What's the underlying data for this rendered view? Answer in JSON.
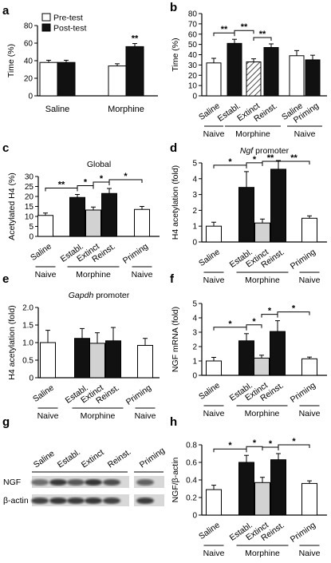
{
  "chart_data": [
    {
      "panel": "a",
      "type": "bar",
      "ylabel": "Time (%)",
      "ylim": [
        0,
        80
      ],
      "yticks": [
        0,
        20,
        40,
        60,
        80
      ],
      "categories": [
        "Saline",
        "Morphine"
      ],
      "series": [
        {
          "name": "Pre-test",
          "color": "#ffffff",
          "values": [
            38,
            34
          ],
          "errors": [
            2.5,
            2.5
          ]
        },
        {
          "name": "Post-test",
          "color": "#111111",
          "values": [
            38,
            56
          ],
          "errors": [
            2.5,
            3.5
          ]
        }
      ],
      "legend": "top-left",
      "annotations": [
        {
          "text": "**",
          "category": "Morphine",
          "series": "Post-test"
        }
      ]
    },
    {
      "panel": "b",
      "type": "bar",
      "ylabel": "Time (%)",
      "ylim": [
        0,
        80
      ],
      "yticks": [
        0,
        10,
        20,
        30,
        40,
        50,
        60,
        70,
        80
      ],
      "categories": [
        "Saline",
        "Establ.",
        "Extinct",
        "Reinst.",
        "Saline",
        "Priming"
      ],
      "values": [
        32,
        51,
        33,
        47,
        39,
        35
      ],
      "errors": [
        4.5,
        4,
        3,
        3.5,
        5,
        4.5
      ],
      "fills": [
        "white",
        "black",
        "hatch",
        "black",
        "white",
        "black"
      ],
      "groups": [
        {
          "label": "Naive",
          "categories": [
            "Saline"
          ]
        },
        {
          "label": "Morphine",
          "categories": [
            "Establ.",
            "Extinct",
            "Reinst."
          ]
        },
        {
          "label": "Naive",
          "categories": [
            "Saline",
            "Priming"
          ]
        }
      ],
      "significance": [
        {
          "text": "**",
          "between": [
            "Saline",
            "Establ."
          ]
        },
        {
          "text": "**",
          "between": [
            "Establ.",
            "Extinct"
          ]
        },
        {
          "text": "**",
          "between": [
            "Extinct",
            "Reinst."
          ]
        }
      ]
    },
    {
      "panel": "c",
      "type": "bar",
      "title": "Global",
      "ylabel": "Acetylated H4 (%)",
      "ylim": [
        0,
        30
      ],
      "yticks": [
        0,
        5,
        10,
        15,
        20,
        25,
        30
      ],
      "categories": [
        "Saline",
        "Establ.",
        "Extinct",
        "Reinst.",
        "Priming"
      ],
      "values": [
        10.5,
        19.5,
        13.2,
        21.5,
        13.5
      ],
      "errors": [
        1.2,
        1.5,
        1.5,
        2.5,
        1.5
      ],
      "fills": [
        "white",
        "black",
        "grey",
        "black",
        "white"
      ],
      "groups": [
        {
          "label": "Naive",
          "categories": [
            "Saline"
          ]
        },
        {
          "label": "Morphine",
          "categories": [
            "Establ.",
            "Extinct",
            "Reinst."
          ]
        },
        {
          "label": "Naive",
          "categories": [
            "Priming"
          ]
        }
      ],
      "significance": [
        {
          "text": "**",
          "between": [
            "Saline",
            "Establ."
          ]
        },
        {
          "text": "*",
          "between": [
            "Establ.",
            "Extinct"
          ]
        },
        {
          "text": "*",
          "between": [
            "Extinct",
            "Reinst."
          ]
        },
        {
          "text": "*",
          "between": [
            "Reinst.",
            "Priming"
          ]
        }
      ]
    },
    {
      "panel": "d",
      "type": "bar",
      "title": "Ngf promoter",
      "ylabel": "H4 acetylation (fold)",
      "ylim": [
        0,
        5
      ],
      "yticks": [
        0,
        1,
        2,
        3,
        4,
        5
      ],
      "categories": [
        "Saline",
        "Establ.",
        "Extinct",
        "Reinst.",
        "Priming"
      ],
      "values": [
        1.0,
        3.45,
        1.2,
        4.6,
        1.5
      ],
      "errors": [
        0.25,
        1.0,
        0.25,
        0.55,
        0.15
      ],
      "fills": [
        "white",
        "black",
        "grey",
        "black",
        "white"
      ],
      "groups": [
        {
          "label": "Naive",
          "categories": [
            "Saline"
          ]
        },
        {
          "label": "Morphine",
          "categories": [
            "Establ.",
            "Extinct",
            "Reinst."
          ]
        },
        {
          "label": "Naive",
          "categories": [
            "Priming"
          ]
        }
      ],
      "significance": [
        {
          "text": "*",
          "between": [
            "Saline",
            "Establ."
          ]
        },
        {
          "text": "*",
          "between": [
            "Establ.",
            "Extinct"
          ]
        },
        {
          "text": "**",
          "between": [
            "Extinct",
            "Reinst."
          ]
        },
        {
          "text": "**",
          "between": [
            "Reinst.",
            "Priming"
          ]
        }
      ]
    },
    {
      "panel": "e",
      "type": "bar",
      "title": "Gapdh promoter",
      "ylabel": "H4 acetylation (fold)",
      "ylim": [
        0,
        2.0
      ],
      "yticks": [
        0,
        0.5,
        1.0,
        1.5,
        2.0
      ],
      "categories": [
        "Saline",
        "Establ.",
        "Extinct",
        "Reinst.",
        "Priming"
      ],
      "values": [
        1.0,
        1.12,
        0.98,
        1.05,
        0.92
      ],
      "errors": [
        0.35,
        0.28,
        0.3,
        0.38,
        0.2
      ],
      "fills": [
        "white",
        "black",
        "grey",
        "black",
        "white"
      ],
      "groups": [
        {
          "label": "Naive",
          "categories": [
            "Saline"
          ]
        },
        {
          "label": "Morphine",
          "categories": [
            "Establ.",
            "Extinct",
            "Reinst."
          ]
        },
        {
          "label": "Naive",
          "categories": [
            "Priming"
          ]
        }
      ]
    },
    {
      "panel": "f",
      "type": "bar",
      "ylabel": "NGF mRNA (fold)",
      "ylim": [
        0,
        5
      ],
      "yticks": [
        0,
        1,
        2,
        3,
        4,
        5
      ],
      "categories": [
        "Saline",
        "Establ.",
        "Extinct",
        "Reinst.",
        "Priming"
      ],
      "values": [
        1.0,
        2.4,
        1.2,
        3.05,
        1.15
      ],
      "errors": [
        0.25,
        0.5,
        0.2,
        0.75,
        0.12
      ],
      "fills": [
        "white",
        "black",
        "grey",
        "black",
        "white"
      ],
      "groups": [
        {
          "label": "Naive",
          "categories": [
            "Saline"
          ]
        },
        {
          "label": "Morphine",
          "categories": [
            "Establ.",
            "Extinct",
            "Reinst."
          ]
        },
        {
          "label": "Naive",
          "categories": [
            "Priming"
          ]
        }
      ],
      "significance": [
        {
          "text": "*",
          "between": [
            "Saline",
            "Establ."
          ]
        },
        {
          "text": "*",
          "between": [
            "Establ.",
            "Extinct"
          ]
        },
        {
          "text": "*",
          "between": [
            "Extinct",
            "Reinst."
          ]
        },
        {
          "text": "*",
          "between": [
            "Reinst.",
            "Priming"
          ]
        }
      ]
    },
    {
      "panel": "h",
      "type": "bar",
      "ylabel": "NGF/β-actin",
      "ylim": [
        0,
        0.8
      ],
      "yticks": [
        0,
        0.2,
        0.4,
        0.6,
        0.8
      ],
      "categories": [
        "Saline",
        "Establ.",
        "Extinct",
        "Reinst.",
        "Priming"
      ],
      "values": [
        0.29,
        0.6,
        0.37,
        0.63,
        0.36
      ],
      "errors": [
        0.05,
        0.08,
        0.06,
        0.07,
        0.03
      ],
      "fills": [
        "white",
        "black",
        "grey",
        "black",
        "white"
      ],
      "groups": [
        {
          "label": "Naive",
          "categories": [
            "Saline"
          ]
        },
        {
          "label": "Morphine",
          "categories": [
            "Establ.",
            "Extinct",
            "Reinst."
          ]
        },
        {
          "label": "Naive",
          "categories": [
            "Priming"
          ]
        }
      ],
      "significance": [
        {
          "text": "*",
          "between": [
            "Saline",
            "Establ."
          ]
        },
        {
          "text": "*",
          "between": [
            "Establ.",
            "Extinct"
          ]
        },
        {
          "text": "*",
          "between": [
            "Extinct",
            "Reinst."
          ]
        },
        {
          "text": "*",
          "between": [
            "Reinst.",
            "Priming"
          ]
        }
      ]
    }
  ],
  "panel_letters": {
    "a": "a",
    "b": "b",
    "c": "c",
    "d": "d",
    "e": "e",
    "f": "f",
    "g": "g",
    "h": "h"
  },
  "blot": {
    "lanes": [
      "Saline",
      "Establ.",
      "Extinct",
      "Reinst.",
      "Priming"
    ],
    "rows": [
      "NGF",
      "β-actin"
    ]
  },
  "colors": {
    "black": "#111111",
    "grey": "#d2d2d2",
    "white": "#ffffff"
  }
}
